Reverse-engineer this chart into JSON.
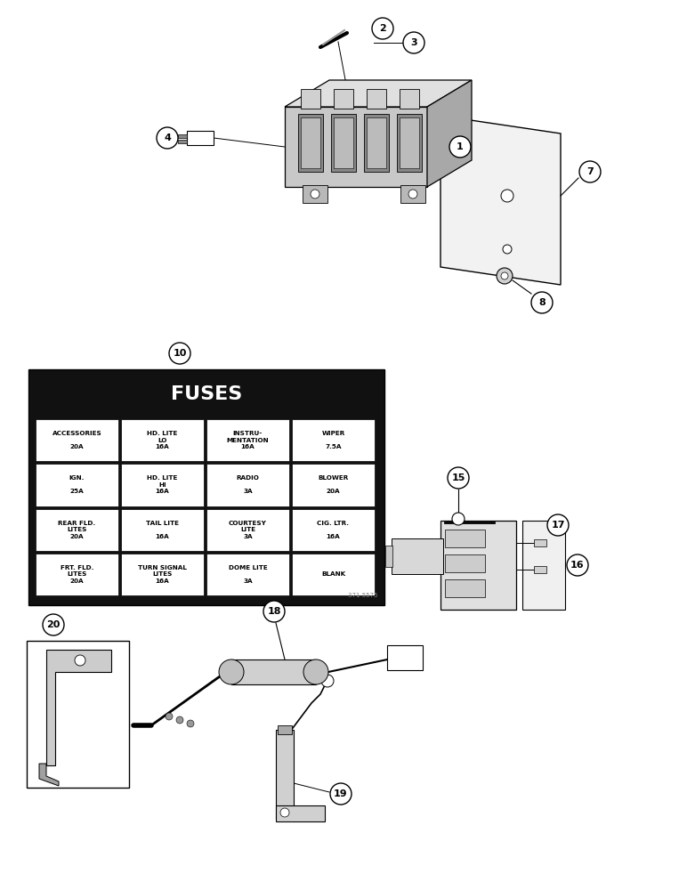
{
  "bg_color": "#ffffff",
  "fuse_table": {
    "rows": [
      [
        "ACCESSORIES\n\n20A",
        "HD. LITE\nLO\n16A",
        "INSTRU-\nMENTATION\n16A",
        "WIPER\n\n7.5A"
      ],
      [
        "IGN.\n\n25A",
        "HD. LITE\nHI\n16A",
        "RADIO\n\n3A",
        "BLOWER\n\n20A"
      ],
      [
        "REAR FLD.\nLITES\n20A",
        "TAIL LITE\n\n16A",
        "COURTESY\nLITE\n3A",
        "CIG. LTR.\n\n16A"
      ],
      [
        "FRT. FLD.\nLITES\n20A",
        "TURN SIGNAL\nLITES\n16A",
        "DOME LITE\n\n3A",
        "BLANK"
      ]
    ],
    "part_num": "371 5575"
  }
}
